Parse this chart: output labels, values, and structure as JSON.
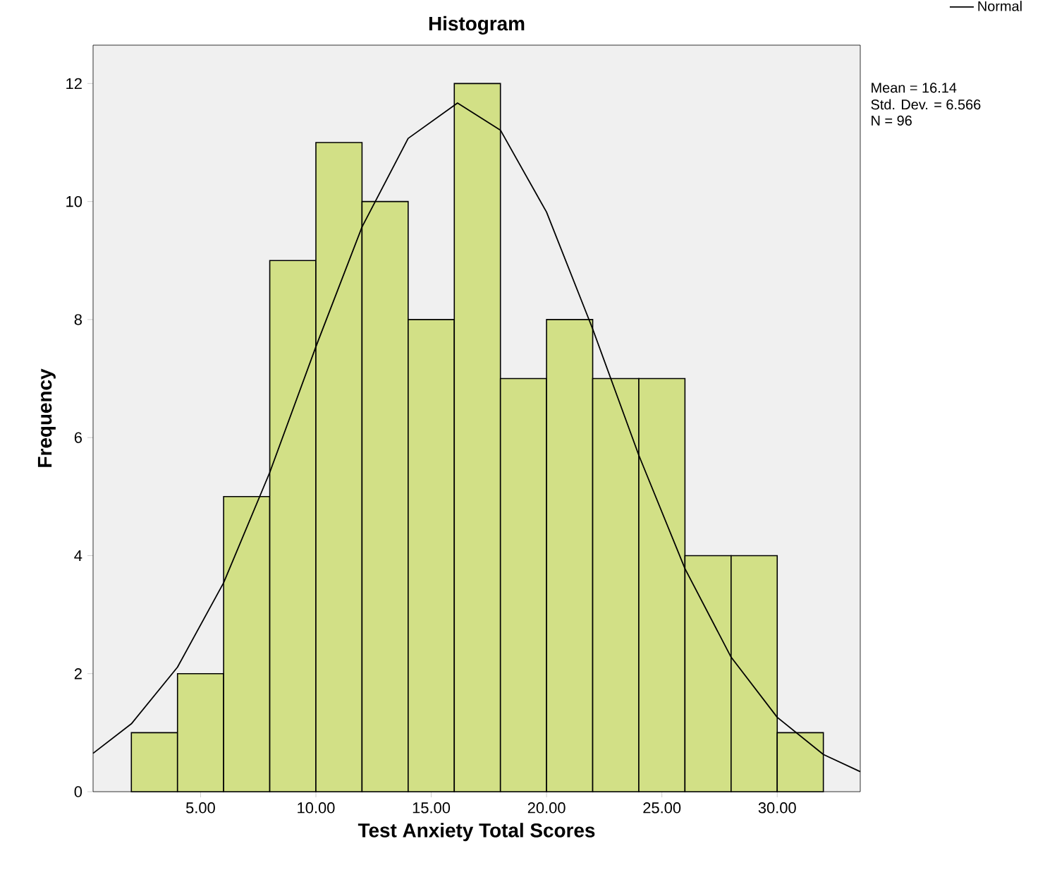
{
  "chart_data": {
    "type": "histogram",
    "title": "Histogram",
    "xlabel": "Test Anxiety Total Scores",
    "ylabel": "Frequency",
    "bins": [
      2,
      4,
      6,
      8,
      10,
      12,
      14,
      16,
      18,
      20,
      22,
      24,
      26,
      28,
      30,
      32
    ],
    "values": [
      1,
      2,
      5,
      9,
      11,
      10,
      8,
      12,
      7,
      8,
      7,
      7,
      4,
      4,
      1
    ],
    "color": "#d2e086",
    "series": [
      {
        "type": "line",
        "name": "Normal",
        "color": "#000000",
        "x": [
          0.34,
          2,
          4,
          6,
          8,
          10,
          12,
          14,
          16.14,
          18,
          20,
          22,
          24,
          26,
          28,
          30,
          32,
          33.6
        ],
        "values": [
          0.65,
          1.15,
          2.11,
          3.54,
          5.41,
          7.54,
          9.57,
          11.07,
          11.67,
          11.21,
          9.82,
          7.84,
          5.7,
          3.78,
          2.28,
          1.26,
          0.63,
          0.34
        ]
      }
    ],
    "xlim": [
      0.34,
      33.6
    ],
    "ylim": [
      0,
      12.65
    ],
    "xticks": [
      {
        "value": 5,
        "label": "5.00"
      },
      {
        "value": 10,
        "label": "10.00"
      },
      {
        "value": 15,
        "label": "15.00"
      },
      {
        "value": 20,
        "label": "20.00"
      },
      {
        "value": 25,
        "label": "25.00"
      },
      {
        "value": 30,
        "label": "30.00"
      }
    ],
    "yticks": [
      0,
      2,
      4,
      6,
      8,
      10,
      12
    ],
    "legend": "top right",
    "annotations": [
      "Mean = 16.14",
      "Std. Dev. = 6.566",
      "N = 96"
    ]
  }
}
